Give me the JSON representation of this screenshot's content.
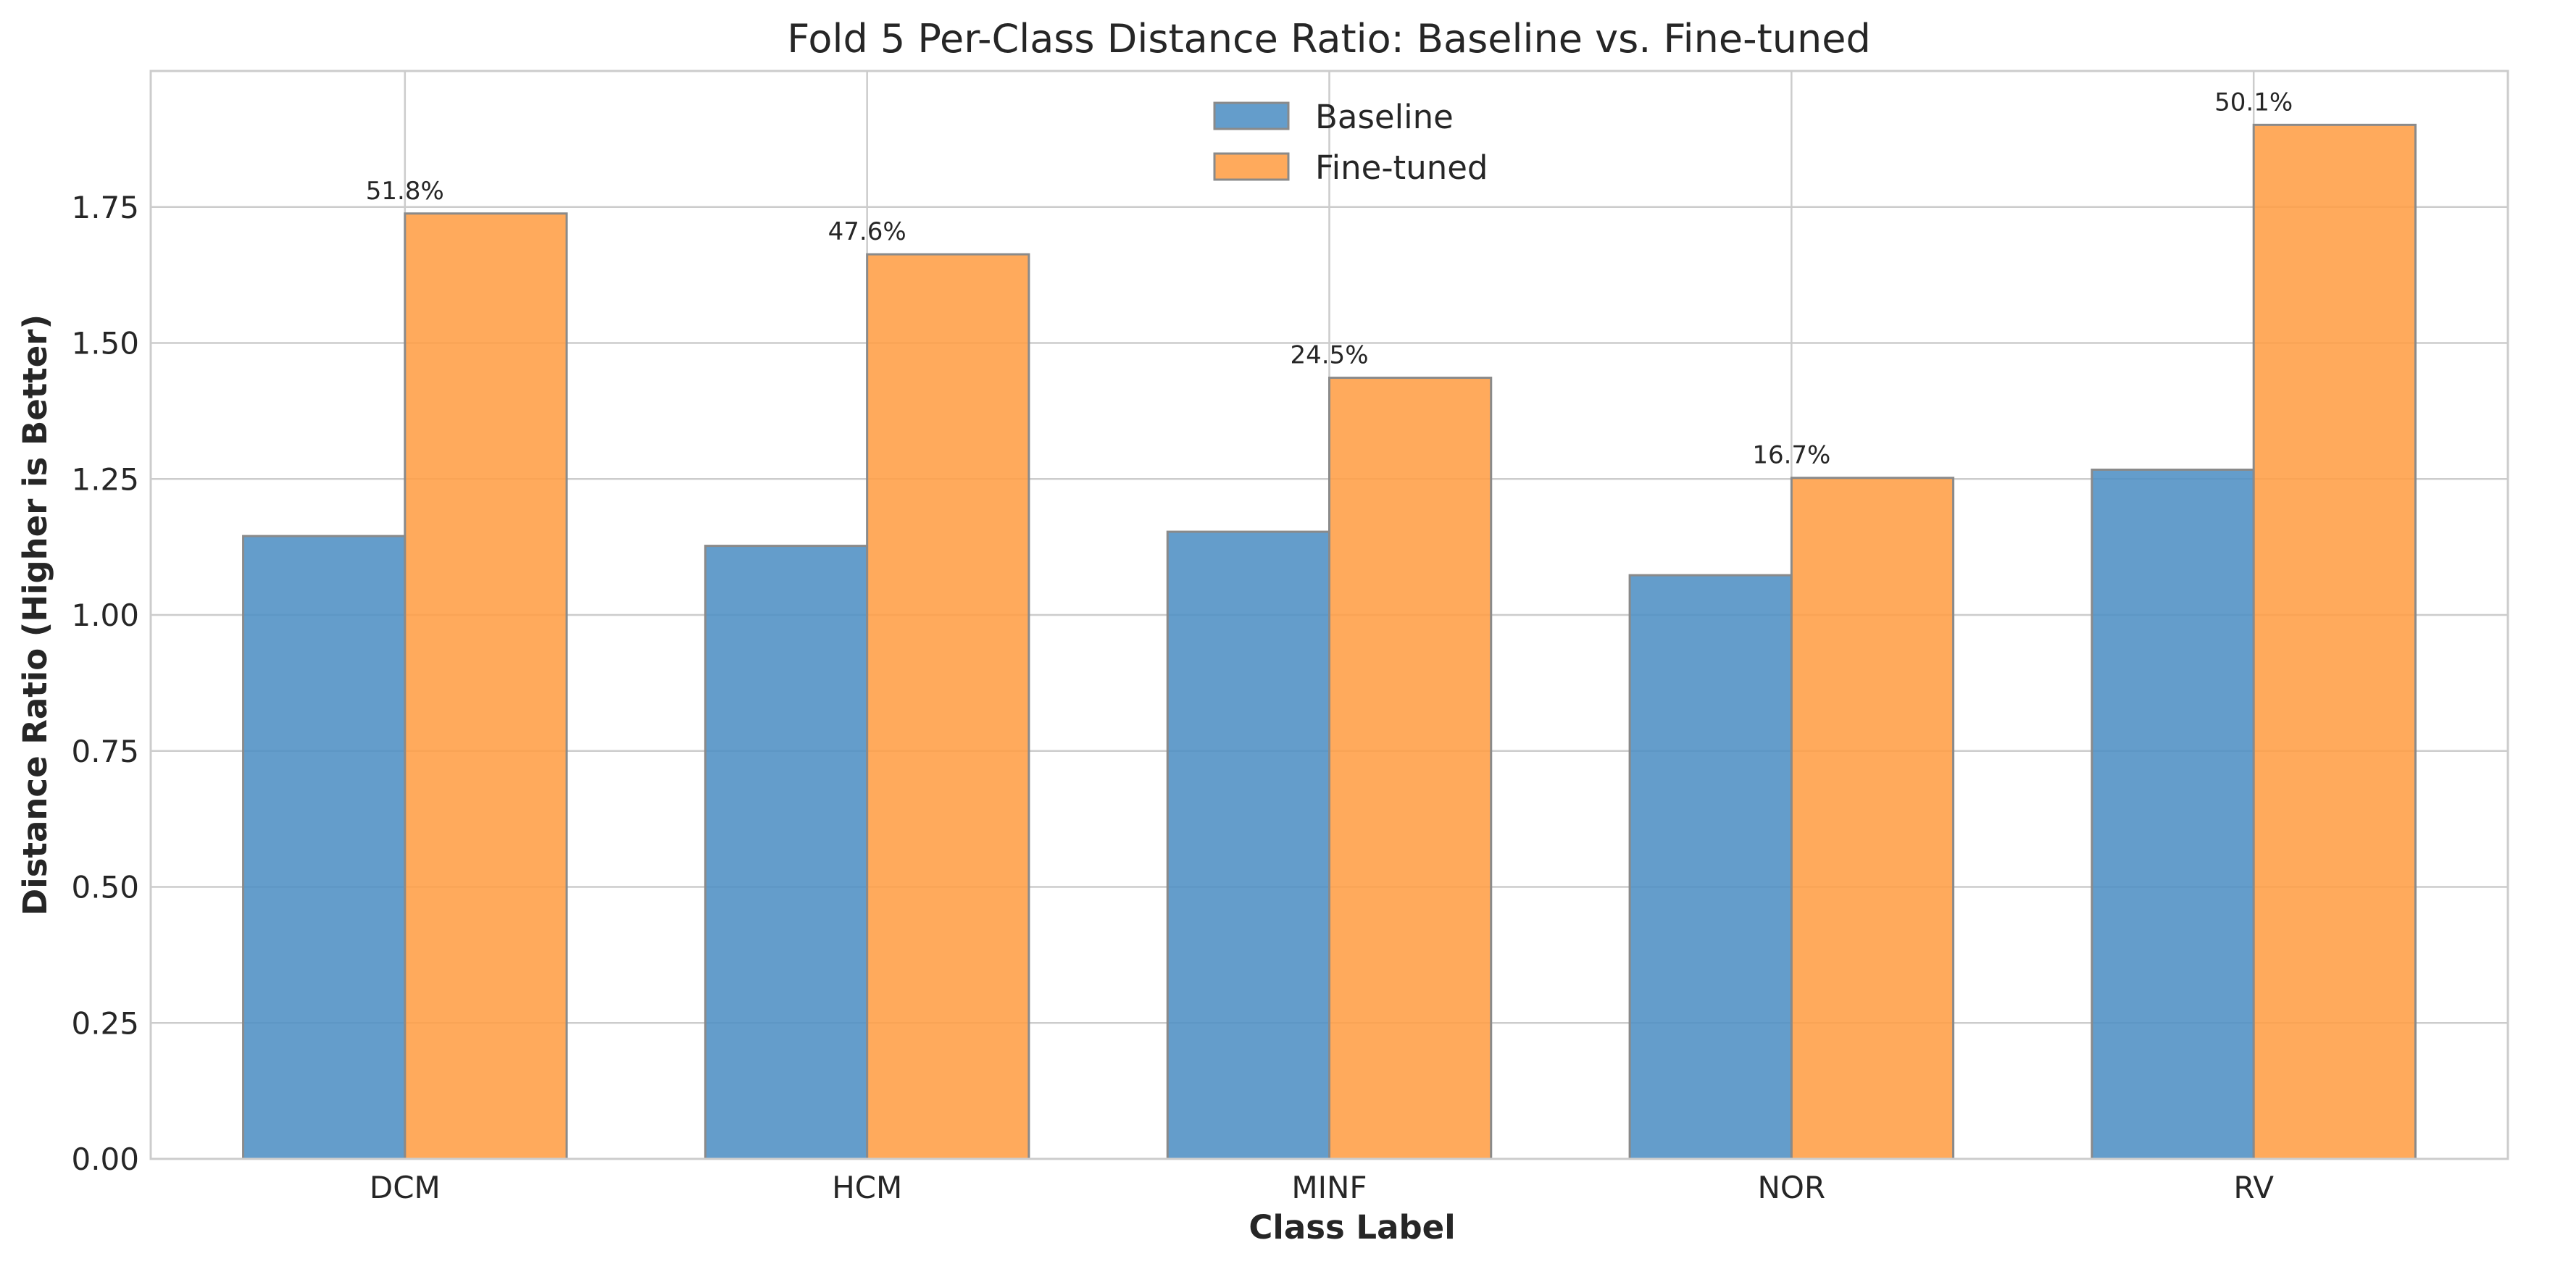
{
  "chart_data": {
    "type": "bar",
    "title": "Fold 5 Per-Class Distance Ratio: Baseline vs. Fine-tuned",
    "xlabel": "Class Label",
    "ylabel": "Distance Ratio (Higher is Better)",
    "categories": [
      "DCM",
      "HCM",
      "MINF",
      "NOR",
      "RV"
    ],
    "series": [
      {
        "name": "Baseline",
        "color": "#4f8fc4",
        "values": [
          1.145,
          1.127,
          1.153,
          1.073,
          1.267
        ]
      },
      {
        "name": "Fine-tuned",
        "color": "#ff9e45",
        "values": [
          1.738,
          1.663,
          1.436,
          1.252,
          1.901
        ]
      }
    ],
    "annotations": [
      "51.8%",
      "47.6%",
      "24.5%",
      "16.7%",
      "50.1%"
    ],
    "ylim": [
      0,
      2.0
    ],
    "yticks": [
      0.0,
      0.25,
      0.5,
      0.75,
      1.0,
      1.25,
      1.5,
      1.75
    ],
    "ytick_labels": [
      "0.00",
      "0.25",
      "0.50",
      "0.75",
      "1.00",
      "1.25",
      "1.50",
      "1.75"
    ],
    "grid": true,
    "legend_position": "top-center"
  }
}
